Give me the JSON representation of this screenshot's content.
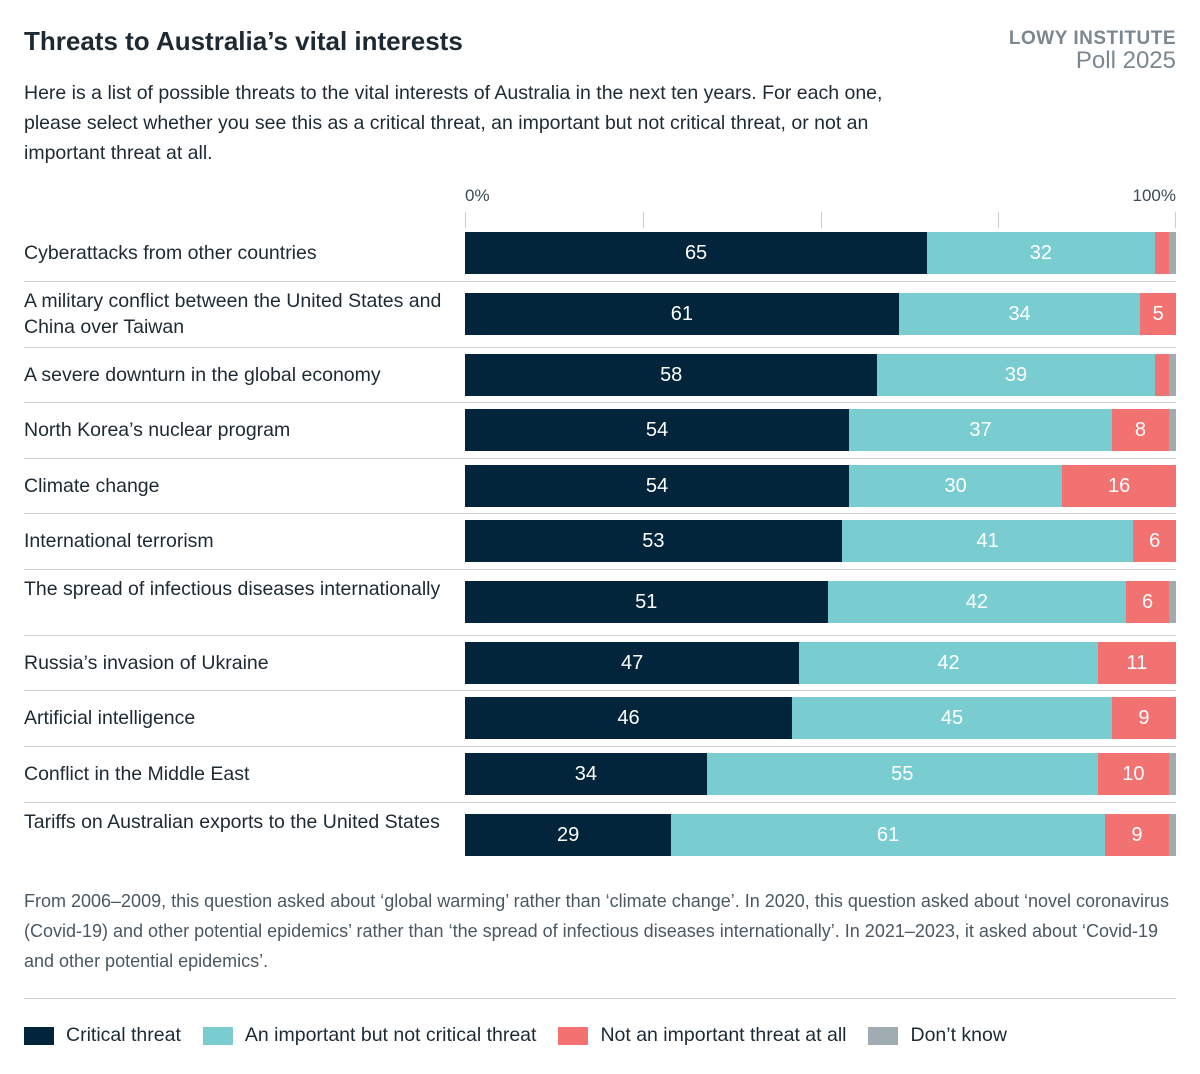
{
  "title": "Threats to Australia’s vital interests",
  "brand": {
    "line1": "LOWY INSTITUTE",
    "line2": "Poll 2025"
  },
  "subtitle": "Here is a list of possible threats to the vital interests of Australia in the next ten years. For each one, please select whether you see this as a critical threat, an important but not critical threat, or not an important threat at all.",
  "note": "From 2006–2009, this question asked about ‘global warming’ rather than ‘climate change’. In 2020, this question asked about ‘novel coronavirus (Covid-19) and other potential epidemics’ rather than ‘the spread of infectious diseases internationally’. In 2021–2023, it asked about ‘Covid-19 and other potential epidemics’.",
  "chart_data": {
    "type": "bar",
    "orientation": "horizontal-stacked-100",
    "xlim": [
      0,
      100
    ],
    "tick_labels": [
      "0%",
      "100%"
    ],
    "legend_placement": "bottom",
    "categories": [
      "Cyberattacks from other countries",
      "A military conflict between the United States and China over Taiwan",
      "A severe downturn in the global economy",
      "North Korea’s nuclear program",
      "Climate change",
      "International terrorism",
      "The spread of infectious diseases internationally",
      "Russia’s invasion of Ukraine",
      "Artificial intelligence",
      "Conflict in the Middle East",
      "Tariffs on Australian exports to the United States"
    ],
    "series": [
      {
        "name": "Critical threat",
        "color": "#02253c",
        "values": [
          65,
          61,
          58,
          54,
          54,
          53,
          51,
          47,
          46,
          34,
          29
        ],
        "labels": [
          "65",
          "61",
          "58",
          "54",
          "54",
          "53",
          "51",
          "47",
          "46",
          "34",
          "29"
        ]
      },
      {
        "name": "An important but not critical threat",
        "color": "#79cdd0",
        "values": [
          32,
          34,
          39,
          37,
          30,
          41,
          42,
          42,
          45,
          55,
          61
        ],
        "labels": [
          "32",
          "34",
          "39",
          "37",
          "30",
          "41",
          "42",
          "42",
          "45",
          "55",
          "61"
        ]
      },
      {
        "name": "Not an important threat at all",
        "color": "#f27272",
        "values": [
          2,
          5,
          2,
          8,
          16,
          6,
          6,
          11,
          9,
          10,
          9
        ],
        "labels": [
          "",
          "5",
          "",
          "8",
          "16",
          "6",
          "6",
          "11",
          "9",
          "10",
          "9"
        ]
      },
      {
        "name": "Don’t know",
        "color": "#a1abb2",
        "values": [
          1,
          1,
          1,
          1,
          0,
          0,
          1,
          0,
          1,
          1,
          1
        ],
        "labels": [
          "",
          "",
          "",
          "",
          "",
          "",
          "",
          "",
          "",
          "",
          ""
        ]
      }
    ]
  }
}
